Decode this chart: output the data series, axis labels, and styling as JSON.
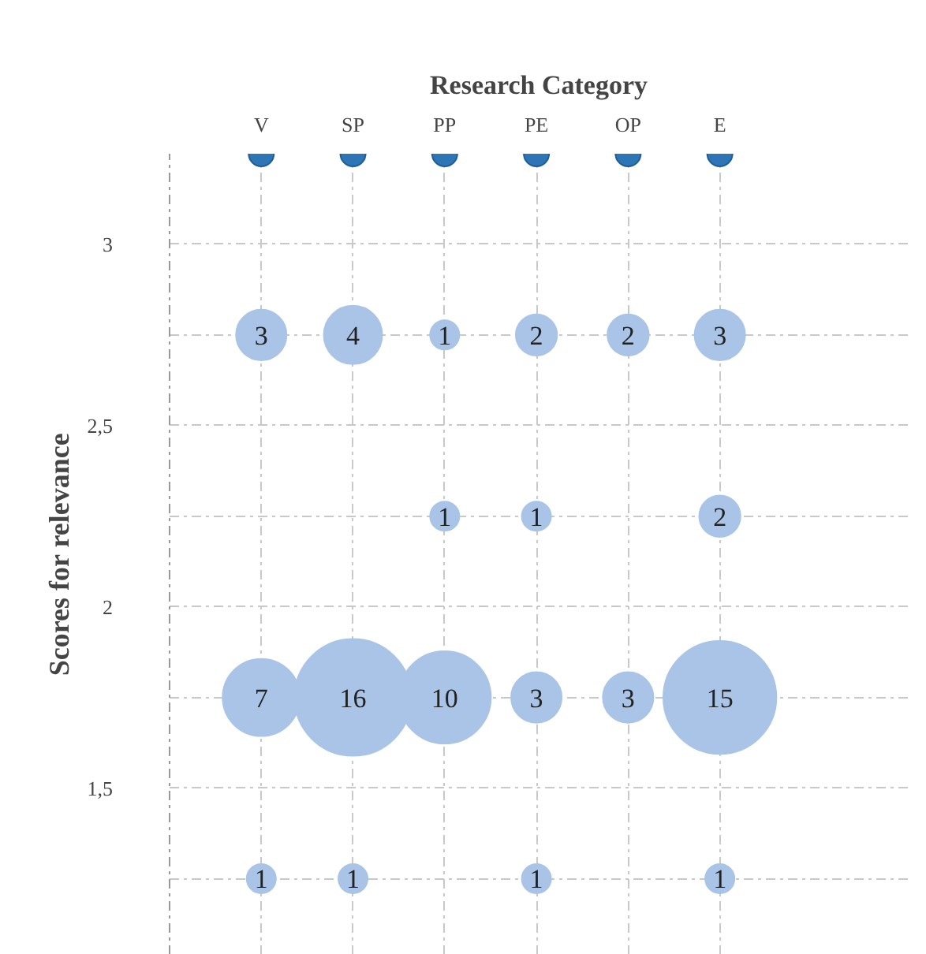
{
  "chart_data": {
    "type": "bubble",
    "title": "Research Category",
    "ylabel": "Scores for relevance",
    "categories": [
      "V",
      "SP",
      "PP",
      "PE",
      "OP",
      "E"
    ],
    "ylim": [
      1.04,
      3.25
    ],
    "yticks": [
      {
        "value": 1.25,
        "label": null
      },
      {
        "value": 1.5,
        "label": "1,5"
      },
      {
        "value": 1.75,
        "label": null
      },
      2,
      {
        "value": 2.25,
        "label": null
      },
      {
        "value": 2.5,
        "label": "2,5"
      },
      {
        "value": 2.75,
        "label": null
      },
      3
    ],
    "grid": true,
    "series": [
      {
        "color": "#a9c4e6",
        "x": [
          "V",
          "SP",
          "PP",
          "PE",
          "OP",
          "E",
          "PP",
          "PE",
          "E",
          "V",
          "SP",
          "PP",
          "PE",
          "OP",
          "E",
          "V",
          "SP",
          "PE",
          "E"
        ],
        "values": [
          2.75,
          2.75,
          2.75,
          2.75,
          2.75,
          2.75,
          2.25,
          2.25,
          2.25,
          1.75,
          1.75,
          1.75,
          1.75,
          1.75,
          1.75,
          1.25,
          1.25,
          1.25,
          1.25
        ],
        "sizes": [
          3,
          4,
          1,
          2,
          2,
          3,
          1,
          1,
          2,
          7,
          16,
          10,
          3,
          3,
          15,
          1,
          1,
          1,
          1
        ],
        "value_labels": [
          "3",
          "4",
          "1",
          "2",
          "2",
          "3",
          "1",
          "1",
          "2",
          "7",
          "16",
          "10",
          "3",
          "3",
          "15",
          "1",
          "1",
          "1",
          "1"
        ]
      },
      {
        "type": "scatter",
        "color": "#2e75b6",
        "x": [
          "V",
          "SP",
          "PP",
          "PE",
          "OP",
          "E"
        ],
        "values": [
          3.25,
          3.25,
          3.25,
          3.25,
          3.25,
          3.25
        ]
      }
    ]
  }
}
